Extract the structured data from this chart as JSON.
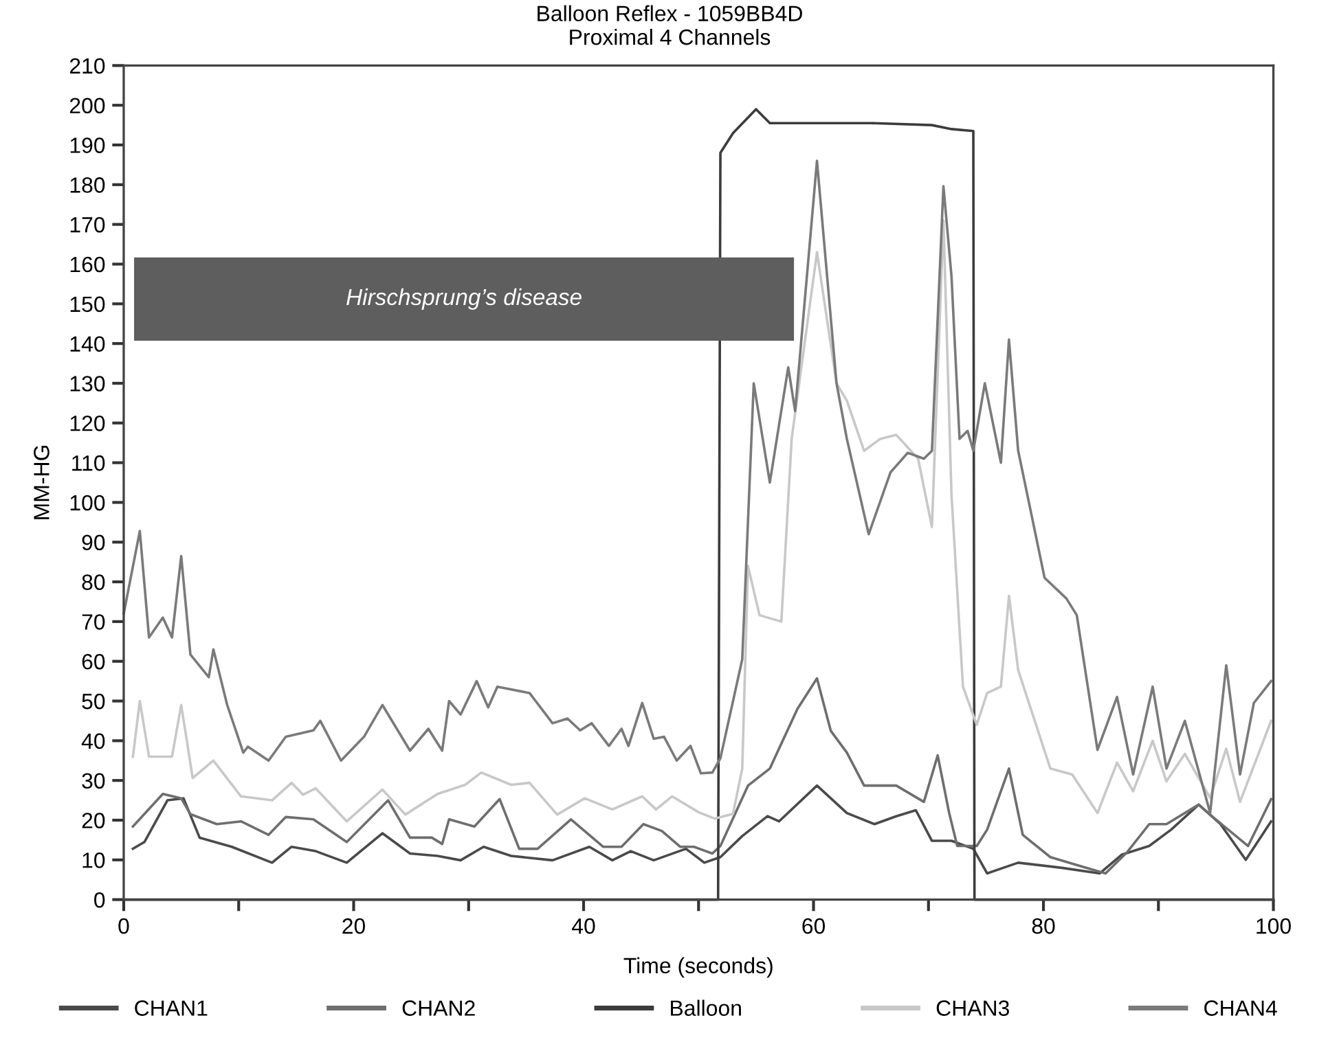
{
  "chart_data": {
    "type": "line",
    "title": "Balloon Reflex - 1059BB4D",
    "subtitle": "Proximal 4 Channels",
    "xlabel": "Time (seconds)",
    "ylabel": "MM-HG",
    "xlim": [
      0,
      100
    ],
    "ylim": [
      0,
      210
    ],
    "xticks": [
      0,
      {
        "value": 10,
        "label": null
      },
      20,
      {
        "value": 30,
        "label": null
      },
      40,
      {
        "value": 50,
        "label": null
      },
      60,
      {
        "value": 70,
        "label": null
      },
      80,
      {
        "value": 90,
        "label": null
      },
      100
    ],
    "yticks": [
      0,
      10,
      20,
      30,
      40,
      50,
      60,
      70,
      80,
      90,
      100,
      110,
      120,
      130,
      140,
      150,
      160,
      170,
      180,
      190,
      200,
      210
    ],
    "grid": false,
    "legend": "bottom",
    "marker": "none",
    "line_style": "solid",
    "annotations": [
      "Hirschsprung’s disease"
    ],
    "series": [
      {
        "name": "CHAN1",
        "color": "#4a4a4a",
        "x": [
          0.8,
          1.8,
          3.8,
          5.2,
          6.6,
          9.4,
          12.9,
          14.6,
          16.7,
          19.4,
          22.5,
          24.9,
          27.3,
          29.3,
          31.3,
          33.7,
          37.3,
          40.5,
          42.5,
          44.1,
          46.1,
          48.9,
          50.5,
          51.9,
          53.8,
          56,
          57,
          60.3,
          62.9,
          65.3,
          67.2,
          68.9,
          70.3,
          72,
          73.9,
          75.1,
          77.8,
          81.6,
          84.9,
          86.8,
          89.2,
          91.1,
          93.5,
          95.4,
          97.6,
          99.8
        ],
        "values": [
          12.8,
          14.5,
          25,
          25.5,
          15.6,
          13.3,
          9.3,
          13.3,
          12.2,
          9.3,
          16.7,
          11.6,
          11,
          9.9,
          13.3,
          11,
          9.9,
          13.3,
          9.9,
          12.2,
          9.9,
          12.8,
          9.3,
          10.7,
          16,
          21,
          19.7,
          28.7,
          21.8,
          19,
          21,
          22.5,
          14.8,
          14.8,
          12.8,
          6.6,
          9.3,
          8,
          6.6,
          11.3,
          13.5,
          17.6,
          23.9,
          19,
          10,
          19.7
        ]
      },
      {
        "name": "CHAN2",
        "color": "#6e6e6e",
        "x": [
          0.8,
          3.4,
          5,
          5.8,
          8.1,
          10.2,
          12.6,
          14.1,
          16.5,
          19.4,
          23,
          24.9,
          26.8,
          27.7,
          28.3,
          30.5,
          32.7,
          34.4,
          36,
          38.9,
          41.7,
          43.3,
          45.2,
          46.8,
          48.4,
          49.6,
          51.2,
          51.9,
          54.3,
          56.2,
          58.6,
          60.3,
          61.5,
          62.9,
          64.4,
          67.2,
          69.6,
          70.8,
          71.8,
          72.5,
          74.2,
          75.1,
          77,
          78.2,
          80.6,
          83.5,
          85.4,
          87.3,
          89.2,
          90.7,
          93.5,
          94.9,
          97.8,
          99.8
        ],
        "values": [
          18.4,
          26.6,
          25.5,
          21.5,
          19,
          19.7,
          16.3,
          20.8,
          20.2,
          14.5,
          25,
          15.6,
          15.6,
          14,
          20.2,
          18.4,
          25.3,
          12.8,
          12.8,
          20.2,
          13.3,
          13.3,
          19,
          17.3,
          13.3,
          13.3,
          11.6,
          13.5,
          28.7,
          33,
          48,
          55.7,
          42.5,
          37,
          28.7,
          28.7,
          24.6,
          36.3,
          21.8,
          13.5,
          13.5,
          17.6,
          33,
          16.3,
          10.7,
          8.2,
          6.6,
          12,
          19,
          19,
          23.9,
          20.4,
          13.5,
          25.3
        ]
      },
      {
        "name": "Balloon",
        "color": "#3c3c3c",
        "x": [
          0,
          51.7,
          51.9,
          53,
          55,
          56.2,
          60,
          65,
          70.3,
          72,
          73.9,
          74,
          100
        ],
        "values": [
          0,
          0,
          188,
          193,
          199,
          195.5,
          195.5,
          195.5,
          195,
          194,
          193.5,
          0,
          0
        ]
      },
      {
        "name": "CHAN3",
        "color": "#c8c8c8",
        "x": [
          0.8,
          1.4,
          2.2,
          4.2,
          5,
          6,
          7.8,
          10.2,
          12.9,
          14.6,
          15.6,
          16.7,
          19.4,
          22.5,
          24.5,
          27.3,
          29.7,
          31.1,
          33.7,
          35.3,
          37.7,
          40.1,
          42.5,
          45.1,
          46.3,
          47.7,
          50,
          51.4,
          53,
          53.8,
          54.3,
          55.3,
          57.2,
          58.1,
          60.3,
          62,
          62.9,
          64.4,
          65.8,
          67.2,
          69.1,
          70.3,
          71.3,
          72,
          73,
          74.2,
          75.1,
          76.3,
          77,
          77.8,
          80.6,
          82.5,
          84.7,
          86.4,
          87.8,
          89.5,
          90.7,
          92.3,
          94.5,
          95.9,
          97.1,
          99.8
        ],
        "values": [
          36,
          50,
          36,
          36,
          49,
          30.6,
          35,
          26,
          25,
          29.4,
          26.4,
          28,
          19.7,
          27.7,
          21.4,
          26.6,
          28.9,
          32,
          28.9,
          29.4,
          21.4,
          25.5,
          22.7,
          26,
          22.7,
          26,
          22,
          20.4,
          21.6,
          33,
          84,
          71.6,
          70,
          116,
          163,
          130,
          125.6,
          113,
          116,
          117,
          111,
          93.8,
          171,
          102,
          53.6,
          44,
          52,
          53.6,
          76.5,
          57.8,
          33,
          31.5,
          21.8,
          34.5,
          27.3,
          40,
          29.8,
          36.7,
          25.6,
          38,
          24.6,
          45
        ]
      },
      {
        "name": "CHAN4",
        "color": "#7a7a7a",
        "x": [
          0,
          1.4,
          2.2,
          3.4,
          4.2,
          5,
          5.8,
          7.4,
          7.8,
          9,
          10.4,
          10.8,
          12.6,
          14.1,
          16.5,
          17.1,
          18.9,
          20.9,
          22.5,
          24.9,
          26.5,
          27.7,
          28.3,
          29.3,
          30.7,
          31.7,
          32.5,
          35.3,
          37.3,
          38.6,
          39.7,
          40.7,
          42.2,
          43.3,
          43.9,
          45.1,
          46.1,
          47,
          48.1,
          49.3,
          50.2,
          51.2,
          51.9,
          53.8,
          54.8,
          56.2,
          57.8,
          58.4,
          60.3,
          62,
          62.9,
          64.8,
          66.7,
          68.2,
          69.6,
          70.3,
          71.3,
          72,
          72.7,
          73.4,
          73.9,
          74.9,
          76.3,
          77,
          77.8,
          80.1,
          82,
          82.9,
          84.7,
          86.4,
          87.8,
          89.5,
          90.7,
          92.3,
          94.5,
          95.9,
          97.1,
          98.3,
          99.8
        ],
        "values": [
          72,
          92.8,
          66,
          71,
          66,
          86.5,
          61.7,
          56,
          63,
          49,
          37,
          38.5,
          35,
          41,
          42.6,
          45,
          35,
          41,
          49,
          37.5,
          43,
          37.5,
          50,
          46.6,
          55,
          48.4,
          53.6,
          52,
          44.4,
          45.6,
          42.6,
          44.4,
          38.7,
          43,
          38.7,
          49.5,
          40.5,
          41,
          35,
          38.7,
          31.8,
          32,
          35.6,
          60.5,
          130,
          105,
          134,
          123,
          186,
          130,
          116,
          92,
          107.6,
          112.5,
          111,
          113,
          179.6,
          157,
          116,
          118,
          113,
          130,
          110,
          141,
          113,
          81,
          75.8,
          71.6,
          37.7,
          51,
          31.5,
          53.6,
          33,
          45,
          21.8,
          59,
          31.5,
          49.5,
          55
        ]
      }
    ]
  }
}
